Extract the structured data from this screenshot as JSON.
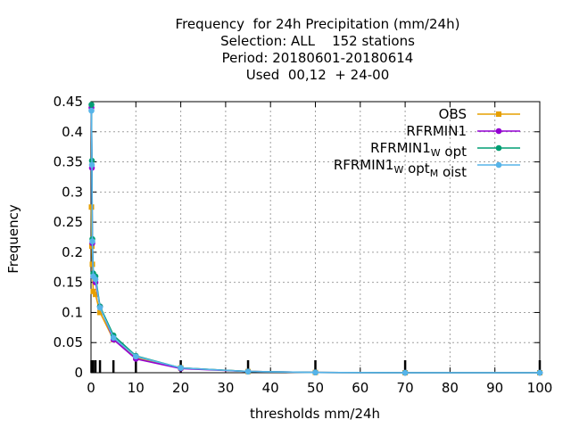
{
  "chart_data": {
    "type": "line",
    "title_lines": [
      "Frequency  for 24h Precipitation (mm/24h)",
      "Selection: ALL    152 stations",
      "Period: 20180601-20180614",
      "Used  00,12  + 24-00"
    ],
    "xlabel": "thresholds mm/24h",
    "ylabel": "Frequency",
    "xlim": [
      0,
      100
    ],
    "ylim": [
      0,
      0.45
    ],
    "xticks": [
      0,
      10,
      20,
      30,
      40,
      50,
      60,
      70,
      80,
      90,
      100
    ],
    "yticks": [
      0,
      0.05,
      0.1,
      0.15,
      0.2,
      0.25,
      0.3,
      0.35,
      0.4,
      0.45
    ],
    "ytick_labels": [
      "0",
      "0.05",
      "0.1",
      "0.15",
      "0.2",
      "0.25",
      "0.3",
      "0.35",
      "0.4",
      "0.45"
    ],
    "grid": true,
    "legend_position": "top-right",
    "threshold_markers": [
      0.1,
      0.2,
      0.3,
      0.5,
      1,
      2,
      5,
      10,
      20,
      35,
      50,
      70,
      100
    ],
    "series": [
      {
        "name": "OBS",
        "legend_parts": [
          {
            "text": "OBS"
          }
        ],
        "color": "#e69f00",
        "x": [
          0.1,
          0.2,
          0.3,
          0.5,
          1,
          2,
          5,
          10,
          20,
          35,
          50,
          70,
          100
        ],
        "y": [
          0.275,
          0.21,
          0.18,
          0.135,
          0.13,
          0.1,
          0.055,
          0.025,
          0.008,
          0.002,
          0.0005,
          0,
          0
        ]
      },
      {
        "name": "RFRMIN1",
        "legend_parts": [
          {
            "text": "RFRMIN1"
          }
        ],
        "color": "#9400d3",
        "x": [
          0.1,
          0.2,
          0.3,
          0.5,
          1,
          2,
          5,
          10,
          20,
          35,
          50,
          70,
          100
        ],
        "y": [
          0.44,
          0.34,
          0.215,
          0.16,
          0.15,
          0.11,
          0.055,
          0.023,
          0.007,
          0.002,
          0.0005,
          0,
          0
        ]
      },
      {
        "name": "RFRMIN1_W opt",
        "legend_parts": [
          {
            "text": "RFRMIN1"
          },
          {
            "text": "W",
            "sub": true
          },
          {
            "text": " opt"
          }
        ],
        "color": "#009e73",
        "x": [
          0.1,
          0.2,
          0.3,
          0.5,
          1,
          2,
          5,
          10,
          20,
          35,
          50,
          70,
          100
        ],
        "y": [
          0.445,
          0.352,
          0.222,
          0.165,
          0.16,
          0.11,
          0.062,
          0.028,
          0.008,
          0.002,
          0.0005,
          0,
          0
        ]
      },
      {
        "name": "RFRMIN1_W opt_M oist",
        "legend_parts": [
          {
            "text": "RFRMIN1"
          },
          {
            "text": "W",
            "sub": true
          },
          {
            "text": " opt"
          },
          {
            "text": "M",
            "sub": true
          },
          {
            "text": " oist"
          }
        ],
        "color": "#56b4e9",
        "x": [
          0.1,
          0.2,
          0.3,
          0.5,
          1,
          2,
          5,
          10,
          20,
          35,
          50,
          70,
          100
        ],
        "y": [
          0.435,
          0.345,
          0.218,
          0.16,
          0.155,
          0.108,
          0.058,
          0.027,
          0.008,
          0.002,
          0.0005,
          0,
          0
        ]
      }
    ]
  }
}
